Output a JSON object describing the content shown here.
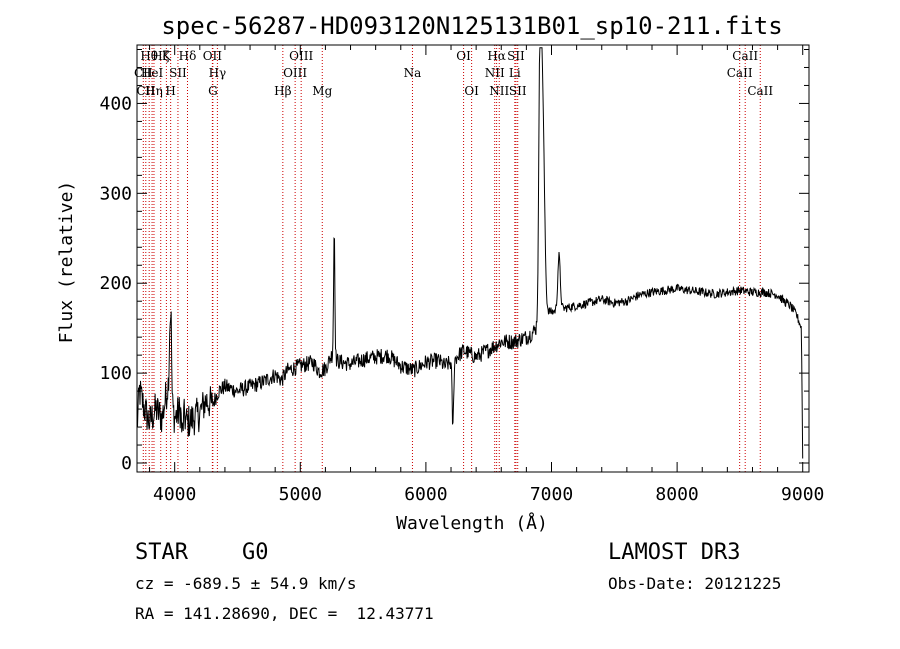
{
  "chart_data": {
    "type": "line",
    "title": "spec-56287-HD093120N125131B01_sp10-211.fits",
    "xlabel": "Wavelength (Å)",
    "ylabel": "Flux (relative)",
    "xlim": [
      3700,
      9050
    ],
    "ylim": [
      -10,
      465
    ],
    "xticks": [
      4000,
      5000,
      6000,
      7000,
      8000,
      9000
    ],
    "yticks": [
      0,
      100,
      200,
      300,
      400
    ],
    "spectrum_anchors": [
      [
        3700,
        40
      ],
      [
        3720,
        80
      ],
      [
        3760,
        60
      ],
      [
        3800,
        45
      ],
      [
        3850,
        60
      ],
      [
        3900,
        50
      ],
      [
        3950,
        90
      ],
      [
        3960,
        140
      ],
      [
        3970,
        70
      ],
      [
        4000,
        50
      ],
      [
        4050,
        60
      ],
      [
        4100,
        45
      ],
      [
        4150,
        50
      ],
      [
        4200,
        55
      ],
      [
        4250,
        70
      ],
      [
        4300,
        65
      ],
      [
        4350,
        80
      ],
      [
        4400,
        85
      ],
      [
        4500,
        80
      ],
      [
        4600,
        85
      ],
      [
        4700,
        90
      ],
      [
        4800,
        98
      ],
      [
        4850,
        92
      ],
      [
        4900,
        103
      ],
      [
        5000,
        108
      ],
      [
        5100,
        112
      ],
      [
        5150,
        102
      ],
      [
        5200,
        105
      ],
      [
        5250,
        120
      ],
      [
        5300,
        113
      ],
      [
        5400,
        110
      ],
      [
        5500,
        115
      ],
      [
        5600,
        118
      ],
      [
        5700,
        120
      ],
      [
        5800,
        108
      ],
      [
        5900,
        103
      ],
      [
        6000,
        112
      ],
      [
        6100,
        114
      ],
      [
        6150,
        108
      ],
      [
        6200,
        112
      ],
      [
        6300,
        125
      ],
      [
        6400,
        118
      ],
      [
        6500,
        126
      ],
      [
        6600,
        135
      ],
      [
        6700,
        135
      ],
      [
        6800,
        140
      ],
      [
        6850,
        145
      ],
      [
        6880,
        150
      ],
      [
        6950,
        170
      ],
      [
        7000,
        168
      ],
      [
        7100,
        172
      ],
      [
        7200,
        175
      ],
      [
        7300,
        178
      ],
      [
        7400,
        182
      ],
      [
        7500,
        178
      ],
      [
        7600,
        180
      ],
      [
        7700,
        187
      ],
      [
        7800,
        190
      ],
      [
        7900,
        192
      ],
      [
        8000,
        194
      ],
      [
        8100,
        192
      ],
      [
        8200,
        190
      ],
      [
        8300,
        188
      ],
      [
        8400,
        190
      ],
      [
        8500,
        192
      ],
      [
        8600,
        190
      ],
      [
        8700,
        190
      ],
      [
        8800,
        187
      ],
      [
        8850,
        180
      ],
      [
        8900,
        175
      ],
      [
        8950,
        165
      ],
      [
        8990,
        150
      ],
      [
        9000,
        5
      ]
    ],
    "spectrum_features": [
      {
        "center": 3970,
        "width": 5,
        "depth": 95
      },
      {
        "center": 4060,
        "width": 6,
        "depth": -25
      },
      {
        "center": 5270,
        "width": 5,
        "depth": 145
      },
      {
        "center": 6215,
        "width": 6,
        "depth": -75
      },
      {
        "center": 6910,
        "width": 10,
        "depth": 300
      },
      {
        "center": 6930,
        "width": 14,
        "depth": 220
      },
      {
        "center": 7060,
        "width": 10,
        "depth": 60
      }
    ],
    "lines": [
      {
        "wl": 3750,
        "label": "CII",
        "row": 2
      },
      {
        "wl": 3770,
        "label": "CII",
        "row": 3
      },
      {
        "wl": 3797,
        "label": "Hθ",
        "row": 1
      },
      {
        "wl": 3820,
        "label": "HeI",
        "row": 2
      },
      {
        "wl": 3835,
        "label": "Hη",
        "row": 3
      },
      {
        "wl": 3889,
        "label": "Hζ",
        "row": 1
      },
      {
        "wl": 3934,
        "label": "K",
        "row": 1
      },
      {
        "wl": 3968,
        "label": "H",
        "row": 3
      },
      {
        "wl": 4026,
        "label": "SII",
        "row": 2
      },
      {
        "wl": 4102,
        "label": "Hδ",
        "row": 1
      },
      {
        "wl": 4300,
        "label": "OII",
        "row": 1
      },
      {
        "wl": 4304,
        "label": "G",
        "row": 3
      },
      {
        "wl": 4340,
        "label": "Hγ",
        "row": 2
      },
      {
        "wl": 4861,
        "label": "Hβ",
        "row": 3
      },
      {
        "wl": 4959,
        "label": "OIII",
        "row": 2
      },
      {
        "wl": 5007,
        "label": "OIII",
        "row": 1
      },
      {
        "wl": 5175,
        "label": "Mg",
        "row": 3
      },
      {
        "wl": 5893,
        "label": "Na",
        "row": 2
      },
      {
        "wl": 6300,
        "label": "OI",
        "row": 1
      },
      {
        "wl": 6364,
        "label": "OI",
        "row": 3
      },
      {
        "wl": 6548,
        "label": "NII",
        "row": 2
      },
      {
        "wl": 6563,
        "label": "Hα",
        "row": 1
      },
      {
        "wl": 6584,
        "label": "NII",
        "row": 3
      },
      {
        "wl": 6708,
        "label": "Li",
        "row": 2
      },
      {
        "wl": 6717,
        "label": "SII",
        "row": 1
      },
      {
        "wl": 6731,
        "label": "SII",
        "row": 3
      },
      {
        "wl": 8498,
        "label": "CaII",
        "row": 2
      },
      {
        "wl": 8542,
        "label": "CaII",
        "row": 1
      },
      {
        "wl": 8662,
        "label": "CaII",
        "row": 3
      }
    ],
    "line_color": "#000000",
    "marker_color": "#cc0000",
    "grid": false,
    "legend": "none"
  },
  "info": {
    "object_class": "STAR",
    "subclass": "G0",
    "survey": "LAMOST DR3",
    "redshift": "cz = -689.5 ± 54.9 km/s",
    "obs_date": "Obs-Date: 20121225",
    "coords": "RA = 141.28690, DEC =  12.43771"
  }
}
